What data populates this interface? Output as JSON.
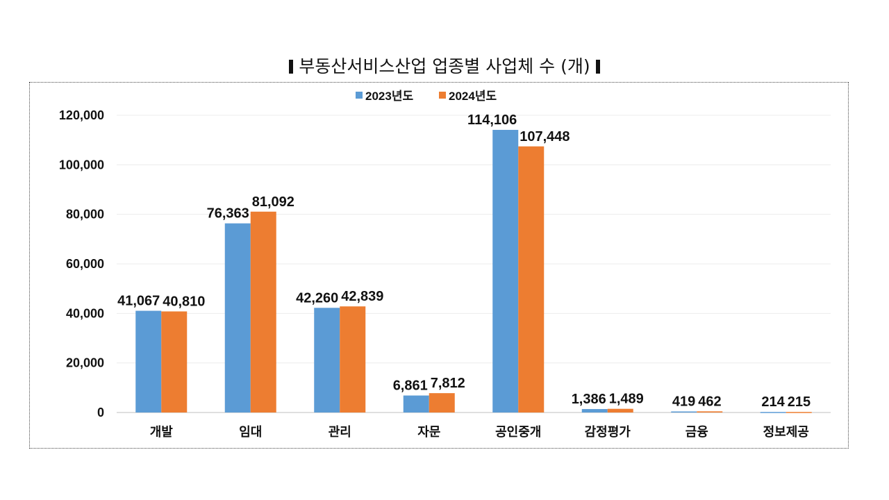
{
  "chart_data": {
    "type": "bar",
    "title": "부동산서비스산업 업종별 사업체 수 (개)",
    "categories": [
      "개발",
      "임대",
      "관리",
      "자문",
      "공인중개",
      "감정평가",
      "금융",
      "정보제공"
    ],
    "series": [
      {
        "name": "2023년도",
        "color": "#5B9BD5",
        "values": [
          41067,
          76363,
          42260,
          6861,
          114106,
          1386,
          419,
          214
        ],
        "labels": [
          "41,067",
          "76,363",
          "42,260",
          "6,861",
          "114,106",
          "1,386",
          "419",
          "214"
        ]
      },
      {
        "name": "2024년도",
        "color": "#ED7D31",
        "values": [
          40810,
          81092,
          42839,
          7812,
          107448,
          1489,
          462,
          215
        ],
        "labels": [
          "40,810",
          "81,092",
          "42,839",
          "7,812",
          "107,448",
          "1,489",
          "462",
          "215"
        ]
      }
    ],
    "ylim": [
      0,
      120000
    ],
    "yticks": [
      0,
      20000,
      40000,
      60000,
      80000,
      100000,
      120000
    ],
    "ytick_labels": [
      "0",
      "20,000",
      "40,000",
      "60,000",
      "80,000",
      "100,000",
      "120,000"
    ],
    "grid": true,
    "legend": "top-center"
  }
}
